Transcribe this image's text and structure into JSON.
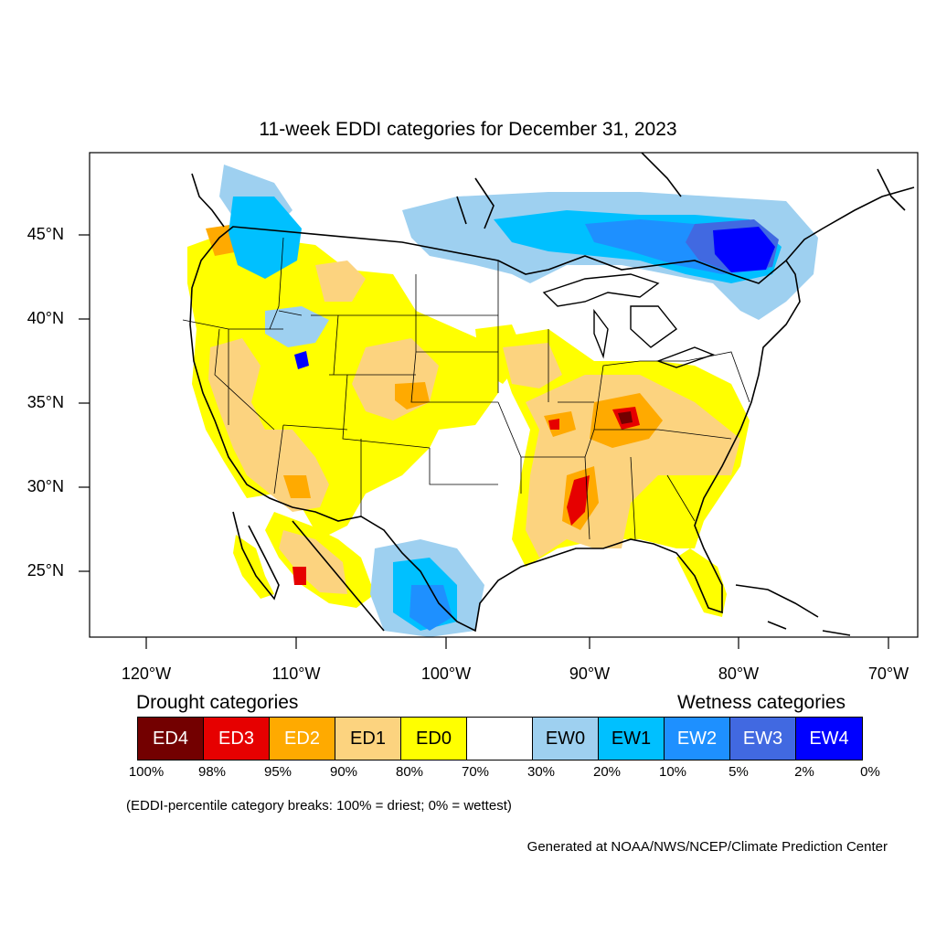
{
  "title": "11-week EDDI categories for December 31, 2023",
  "latitude_labels": [
    "45°N",
    "40°N",
    "35°N",
    "30°N",
    "25°N"
  ],
  "longitude_labels": [
    "120°W",
    "110°W",
    "100°W",
    "90°W",
    "80°W",
    "70°W"
  ],
  "legend": {
    "drought_heading": "Drought categories",
    "wetness_heading": "Wetness categories",
    "categories": [
      {
        "label": "ED4",
        "color": "#730000",
        "text_color": "#ffffff"
      },
      {
        "label": "ED3",
        "color": "#e60000",
        "text_color": "#ffffff"
      },
      {
        "label": "ED2",
        "color": "#ffaa00",
        "text_color": "#ffffff"
      },
      {
        "label": "ED1",
        "color": "#fcd37f",
        "text_color": "#000000"
      },
      {
        "label": "ED0",
        "color": "#ffff00",
        "text_color": "#000000"
      },
      {
        "label": "",
        "color": "#ffffff",
        "text_color": "#000000"
      },
      {
        "label": "EW0",
        "color": "#9ed0f0",
        "text_color": "#000000"
      },
      {
        "label": "EW1",
        "color": "#00c0ff",
        "text_color": "#000000"
      },
      {
        "label": "EW2",
        "color": "#1e90ff",
        "text_color": "#ffffff"
      },
      {
        "label": "EW3",
        "color": "#4169e1",
        "text_color": "#ffffff"
      },
      {
        "label": "EW4",
        "color": "#0000ff",
        "text_color": "#ffffff"
      }
    ],
    "percentiles": [
      "100%",
      "98%",
      "95%",
      "90%",
      "80%",
      "70%",
      "30%",
      "20%",
      "10%",
      "5%",
      "2%",
      "0%"
    ]
  },
  "note": "(EDDI-percentile category breaks: 100% = driest; 0% = wettest)",
  "credit": "Generated at NOAA/NWS/NCEP/Climate Prediction Center"
}
